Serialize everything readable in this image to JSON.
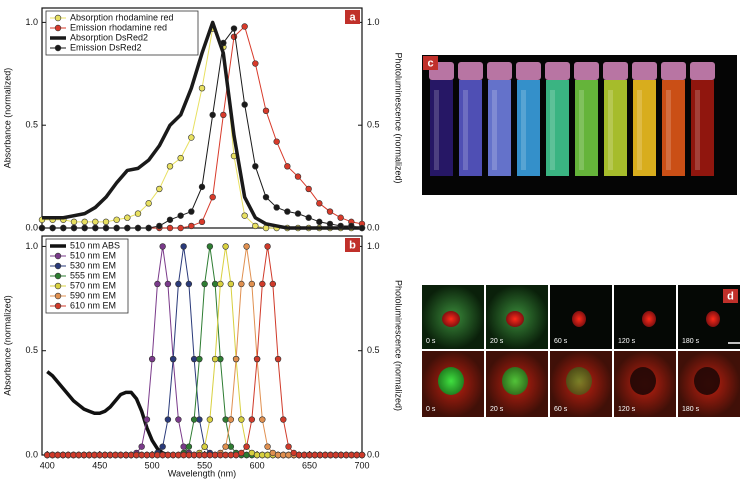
{
  "chart_data": [
    {
      "type": "line",
      "panel_label": "a",
      "ylabel": "Absorbance (normalized)",
      "y2label": "Photoluminescence (normalized)",
      "x": [
        400,
        410,
        420,
        430,
        440,
        450,
        460,
        470,
        480,
        490,
        500,
        510,
        520,
        530,
        540,
        550,
        560,
        570,
        580,
        590,
        600,
        610,
        620,
        630,
        640,
        650,
        660,
        670,
        680,
        690,
        700
      ],
      "xlim": [
        400,
        700
      ],
      "ylim": [
        0,
        1.07
      ],
      "y2lim": [
        0,
        1.07
      ],
      "yticks": [
        {
          "value": 0,
          "label": "0.0"
        },
        0.5,
        {
          "value": 1,
          "label": "1.0"
        }
      ],
      "y2ticks": [
        {
          "value": 0,
          "label": "0.0"
        },
        0.5,
        {
          "value": 1,
          "label": "1.0"
        }
      ],
      "series": [
        {
          "name": "Absorption rhodamine red",
          "color": "#e8e060",
          "marker": true,
          "linewidth": 1,
          "values": [
            0.04,
            0.04,
            0.04,
            0.03,
            0.03,
            0.03,
            0.03,
            0.04,
            0.05,
            0.07,
            0.12,
            0.19,
            0.3,
            0.34,
            0.44,
            0.68,
            0.97,
            0.88,
            0.35,
            0.06,
            0.01,
            0,
            0,
            0,
            0,
            0,
            0,
            0,
            0,
            0,
            0
          ]
        },
        {
          "name": "Emission rhodamine red",
          "color": "#d83a2a",
          "marker": true,
          "linewidth": 1,
          "axis": "y2",
          "values": [
            0,
            0,
            0,
            0,
            0,
            0,
            0,
            0,
            0,
            0,
            0,
            0,
            0,
            0,
            0.01,
            0.03,
            0.15,
            0.55,
            0.93,
            0.98,
            0.8,
            0.57,
            0.42,
            0.3,
            0.25,
            0.19,
            0.12,
            0.08,
            0.05,
            0.03,
            0.02
          ]
        },
        {
          "name": "Absorption DsRed2",
          "color": "#1a1a1a",
          "marker": false,
          "linewidth": 3.5,
          "values": [
            0.05,
            0.05,
            0.05,
            0.06,
            0.07,
            0.1,
            0.15,
            0.22,
            0.28,
            0.29,
            0.33,
            0.4,
            0.5,
            0.55,
            0.68,
            0.85,
            1,
            0.85,
            0.45,
            0.15,
            0.05,
            0.02,
            0.01,
            0,
            0,
            0,
            0,
            0,
            0,
            0,
            0
          ]
        },
        {
          "name": "Emission DsRed2",
          "color": "#1a1a1a",
          "marker": true,
          "linewidth": 1,
          "axis": "y2",
          "values": [
            0,
            0,
            0,
            0,
            0,
            0,
            0,
            0,
            0,
            0,
            0,
            0.01,
            0.04,
            0.06,
            0.08,
            0.2,
            0.55,
            0.9,
            0.97,
            0.6,
            0.3,
            0.15,
            0.1,
            0.08,
            0.07,
            0.05,
            0.03,
            0.02,
            0.01,
            0.01,
            0
          ]
        }
      ]
    },
    {
      "type": "line",
      "panel_label": "b",
      "ylabel": "Absorbance (normalized)",
      "y2label": "Photoluminescence (normalized)",
      "xlabel": "Wavelength (nm)",
      "x": [
        400,
        405,
        410,
        415,
        420,
        425,
        430,
        435,
        440,
        445,
        450,
        455,
        460,
        465,
        470,
        475,
        480,
        485,
        490,
        495,
        500,
        505,
        510,
        515,
        520,
        525,
        530,
        535,
        540,
        545,
        550,
        555,
        560,
        565,
        570,
        575,
        580,
        585,
        590,
        595,
        600,
        605,
        610,
        615,
        620,
        625,
        630,
        635,
        640,
        645,
        650,
        655,
        660,
        665,
        670,
        675,
        680,
        685,
        690,
        695,
        700
      ],
      "xlim": [
        395,
        700
      ],
      "xticks": [
        400,
        450,
        500,
        550,
        600,
        650,
        700
      ],
      "ylim": [
        0,
        1.05
      ],
      "y2lim": [
        0,
        1.05
      ],
      "yticks": [
        {
          "value": 0,
          "label": "0.0"
        },
        0.5,
        {
          "value": 1,
          "label": "1.0"
        }
      ],
      "y2ticks": [
        {
          "value": 0,
          "label": "0.0"
        },
        0.5,
        {
          "value": 1,
          "label": "1.0"
        }
      ],
      "series": [
        {
          "name": "510 nm ABS",
          "color": "#111111",
          "marker": false,
          "linewidth": 3.5,
          "values": [
            0.4,
            0.38,
            0.35,
            0.32,
            0.29,
            0.26,
            0.24,
            0.22,
            0.21,
            0.2,
            0.2,
            0.21,
            0.23,
            0.26,
            0.29,
            0.3,
            0.3,
            0.27,
            0.21,
            0.13,
            0.07,
            0.03,
            0.01,
            0,
            0,
            0,
            0,
            0,
            0,
            0,
            0,
            0,
            0,
            0,
            0,
            0,
            0,
            0,
            0,
            0,
            0,
            0,
            0,
            0,
            0,
            0,
            0,
            0,
            0,
            0,
            0,
            0,
            0,
            0,
            0,
            0,
            0,
            0,
            0,
            0,
            0
          ]
        },
        {
          "name": "510 nm EM",
          "color": "#7a3a8a",
          "marker": true,
          "linewidth": 1,
          "axis": "y2",
          "values": [
            0,
            0,
            0,
            0,
            0,
            0,
            0,
            0,
            0,
            0,
            0,
            0,
            0,
            0,
            0,
            0,
            0,
            0.01,
            0.04,
            0.17,
            0.46,
            0.82,
            1,
            0.82,
            0.46,
            0.17,
            0.04,
            0.01,
            0,
            0,
            0,
            0,
            0,
            0,
            0,
            0,
            0,
            0,
            0,
            0,
            0,
            0,
            0,
            0,
            0,
            0,
            0,
            0,
            0,
            0,
            0,
            0,
            0,
            0,
            0,
            0,
            0,
            0,
            0,
            0,
            0
          ]
        },
        {
          "name": "530 nm EM",
          "color": "#2a3a7a",
          "marker": true,
          "linewidth": 1,
          "axis": "y2",
          "values": [
            0,
            0,
            0,
            0,
            0,
            0,
            0,
            0,
            0,
            0,
            0,
            0,
            0,
            0,
            0,
            0,
            0,
            0,
            0,
            0,
            0,
            0.01,
            0.04,
            0.17,
            0.46,
            0.82,
            1,
            0.82,
            0.46,
            0.17,
            0.04,
            0.01,
            0,
            0,
            0,
            0,
            0,
            0,
            0,
            0,
            0,
            0,
            0,
            0,
            0,
            0,
            0,
            0,
            0,
            0,
            0,
            0,
            0,
            0,
            0,
            0,
            0,
            0,
            0,
            0,
            0
          ]
        },
        {
          "name": "555 nm EM",
          "color": "#2e7d32",
          "marker": true,
          "linewidth": 1,
          "axis": "y2",
          "values": [
            0,
            0,
            0,
            0,
            0,
            0,
            0,
            0,
            0,
            0,
            0,
            0,
            0,
            0,
            0,
            0,
            0,
            0,
            0,
            0,
            0,
            0,
            0,
            0,
            0,
            0,
            0.01,
            0.04,
            0.17,
            0.46,
            0.82,
            1,
            0.82,
            0.46,
            0.17,
            0.04,
            0.01,
            0,
            0,
            0,
            0,
            0,
            0,
            0,
            0,
            0,
            0,
            0,
            0,
            0,
            0,
            0,
            0,
            0,
            0,
            0,
            0,
            0,
            0,
            0,
            0
          ]
        },
        {
          "name": "570 nm EM",
          "color": "#d8d040",
          "marker": true,
          "linewidth": 1,
          "axis": "y2",
          "values": [
            0,
            0,
            0,
            0,
            0,
            0,
            0,
            0,
            0,
            0,
            0,
            0,
            0,
            0,
            0,
            0,
            0,
            0,
            0,
            0,
            0,
            0,
            0,
            0,
            0,
            0,
            0,
            0,
            0,
            0.01,
            0.04,
            0.17,
            0.46,
            0.82,
            1,
            0.82,
            0.46,
            0.17,
            0.04,
            0.01,
            0,
            0,
            0,
            0,
            0,
            0,
            0,
            0,
            0,
            0,
            0,
            0,
            0,
            0,
            0,
            0,
            0,
            0,
            0,
            0,
            0
          ]
        },
        {
          "name": "590 nm EM",
          "color": "#e09050",
          "marker": true,
          "linewidth": 1,
          "axis": "y2",
          "values": [
            0,
            0,
            0,
            0,
            0,
            0,
            0,
            0,
            0,
            0,
            0,
            0,
            0,
            0,
            0,
            0,
            0,
            0,
            0,
            0,
            0,
            0,
            0,
            0,
            0,
            0,
            0,
            0,
            0,
            0,
            0,
            0,
            0,
            0.01,
            0.04,
            0.17,
            0.46,
            0.82,
            1,
            0.82,
            0.46,
            0.17,
            0.04,
            0.01,
            0,
            0,
            0,
            0,
            0,
            0,
            0,
            0,
            0,
            0,
            0,
            0,
            0,
            0,
            0,
            0,
            0
          ]
        },
        {
          "name": "610 nm EM",
          "color": "#d03a2a",
          "marker": true,
          "linewidth": 1,
          "axis": "y2",
          "values": [
            0,
            0,
            0,
            0,
            0,
            0,
            0,
            0,
            0,
            0,
            0,
            0,
            0,
            0,
            0,
            0,
            0,
            0,
            0,
            0,
            0,
            0,
            0,
            0,
            0,
            0,
            0,
            0,
            0,
            0,
            0,
            0,
            0,
            0,
            0,
            0,
            0,
            0.01,
            0.04,
            0.17,
            0.46,
            0.82,
            1,
            0.82,
            0.46,
            0.17,
            0.04,
            0.01,
            0,
            0,
            0,
            0,
            0,
            0,
            0,
            0,
            0,
            0,
            0,
            0,
            0
          ]
        }
      ]
    }
  ],
  "panel_c": {
    "label": "c"
  },
  "panel_d": {
    "label": "d",
    "time_labels_top": [
      "0 s",
      "20 s",
      "60 s",
      "120 s",
      "180 s"
    ],
    "time_labels_bottom": [
      "0 s",
      "20 s",
      "60 s",
      "120 s",
      "180 s"
    ]
  }
}
